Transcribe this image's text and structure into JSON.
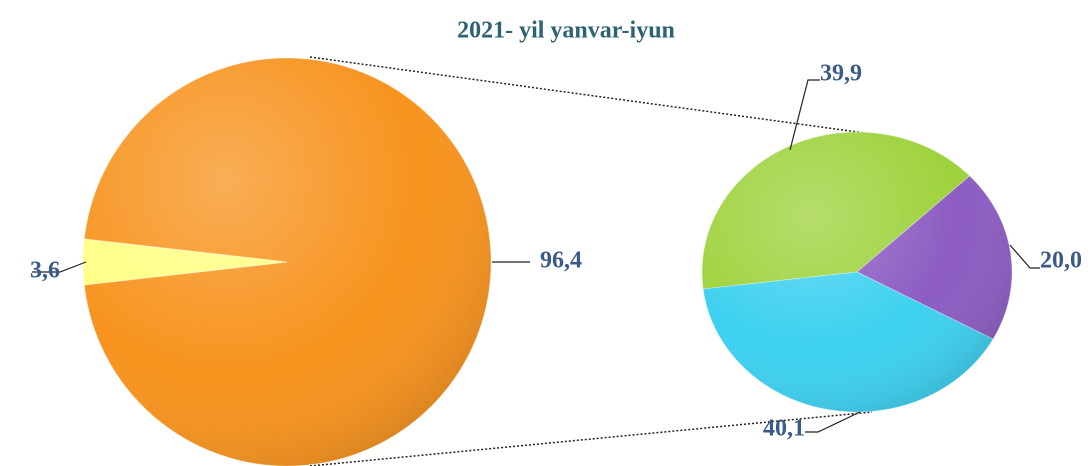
{
  "chart_data": [
    {
      "type": "pie",
      "title": "2021- yil yanvar-iyun",
      "values": [
        96.4,
        3.6
      ],
      "value_labels": [
        "96,4",
        "3,6"
      ],
      "colors": [
        "#f7931e",
        "#ffff85"
      ]
    },
    {
      "type": "pie",
      "values": [
        39.9,
        20.0,
        40.1
      ],
      "value_labels": [
        "39,9",
        "20,0",
        "40,1"
      ],
      "colors": [
        "#9ed23c",
        "#8c5cc2",
        "#3dd0f0"
      ]
    }
  ]
}
